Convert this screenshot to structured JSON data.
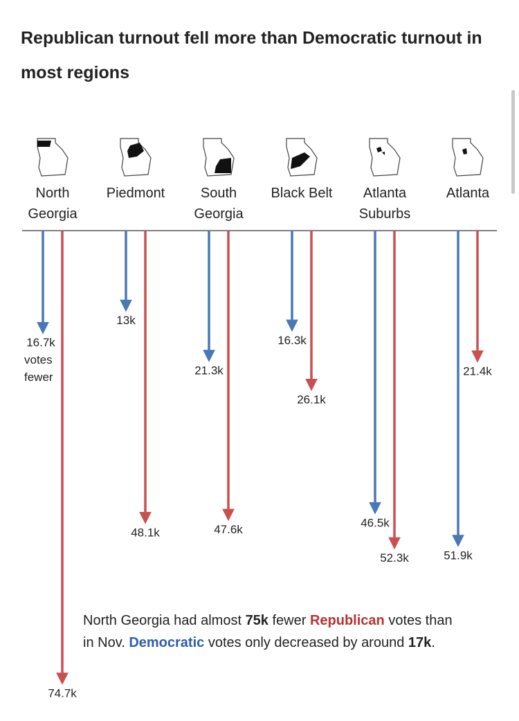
{
  "chart_data": {
    "type": "arrow",
    "title": "Republican turnout fell more than Democratic turnout in most regions",
    "categories": [
      "North Georgia",
      "Piedmont",
      "South Georgia",
      "Black Belt",
      "Atlanta Suburbs",
      "Atlanta"
    ],
    "series": [
      {
        "name": "Democratic",
        "color": "#4a78b5",
        "values": [
          16700,
          13000,
          21300,
          16300,
          46500,
          51900
        ],
        "value_labels": [
          "16.7k",
          "13k",
          "21.3k",
          "16.3k",
          "46.5k",
          "51.9k"
        ]
      },
      {
        "name": "Republican",
        "color": "#c9504f",
        "values": [
          74700,
          48100,
          47600,
          26100,
          52300,
          21400
        ],
        "value_labels": [
          "74.7k",
          "48.1k",
          "47.6k",
          "26.1k",
          "52.3k",
          "21.4k"
        ]
      }
    ],
    "annotation": "votes fewer",
    "note": [
      "North Georgia had almost ",
      "75k",
      " fewer ",
      "Republican",
      " votes than in Nov. ",
      "Democratic",
      " votes only decreased by around ",
      "17k",
      "."
    ]
  }
}
